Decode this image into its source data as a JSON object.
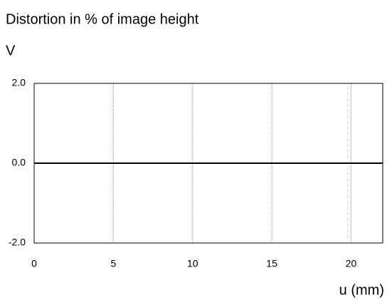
{
  "chart_data": {
    "type": "line",
    "title": "Distortion in % of image height",
    "y_label": "V",
    "x_label": "u (mm)",
    "x": [
      0,
      22
    ],
    "series": [
      {
        "color": "#000000",
        "values": [
          0,
          0
        ]
      }
    ],
    "xlim": [
      0,
      22
    ],
    "xticks": [
      0,
      5,
      10,
      15,
      20
    ],
    "ylim": [
      -2,
      2
    ],
    "yticks": [
      {
        "value": 2,
        "label": "2.0"
      },
      {
        "value": 0,
        "label": "0.0"
      },
      {
        "value": -2,
        "label": "-2.0"
      }
    ],
    "grid": "x"
  }
}
